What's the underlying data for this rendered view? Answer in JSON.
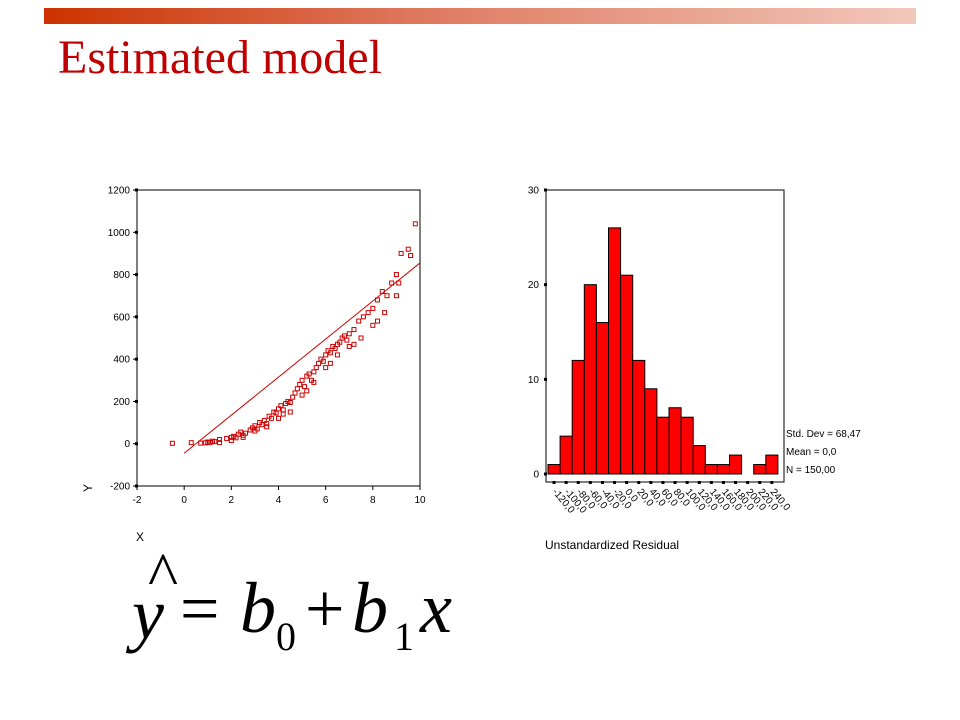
{
  "slide": {
    "title": "Estimated model",
    "accent_color": "#cc3300",
    "title_color": "#c00000"
  },
  "equation": {
    "lhs": "y",
    "hat": "^",
    "equals": "=",
    "b0_base": "b",
    "b0_sub": "0",
    "plus": "+",
    "b1_base": "b",
    "b1_sub": "1",
    "x": "x"
  },
  "chart_data": [
    {
      "type": "scatter",
      "title": "",
      "xlabel": "X",
      "ylabel": "Y",
      "xlim": [
        -2,
        10
      ],
      "ylim": [
        -200,
        1200
      ],
      "xticks": [
        "-2",
        "0",
        "2",
        "4",
        "6",
        "8",
        "10"
      ],
      "yticks": [
        "-200",
        "0",
        "200",
        "400",
        "600",
        "800",
        "1000",
        "1200"
      ],
      "marker_color": "#cc0000",
      "fit_line": {
        "intercept": -45,
        "slope": 90,
        "x_range": [
          0,
          10
        ],
        "color": "#cc0000"
      },
      "points": [
        [
          -0.5,
          2
        ],
        [
          0.3,
          5
        ],
        [
          0.7,
          3
        ],
        [
          0.9,
          4
        ],
        [
          1.0,
          8
        ],
        [
          1.1,
          6
        ],
        [
          1.2,
          12
        ],
        [
          1.3,
          10
        ],
        [
          1.5,
          20
        ],
        [
          1.8,
          25
        ],
        [
          2.0,
          30
        ],
        [
          2.1,
          35
        ],
        [
          2.2,
          28
        ],
        [
          2.3,
          45
        ],
        [
          2.4,
          55
        ],
        [
          2.5,
          40
        ],
        [
          2.6,
          50
        ],
        [
          2.8,
          65
        ],
        [
          2.9,
          75
        ],
        [
          3.0,
          85
        ],
        [
          3.1,
          70
        ],
        [
          3.2,
          100
        ],
        [
          3.3,
          90
        ],
        [
          3.4,
          110
        ],
        [
          3.5,
          95
        ],
        [
          3.6,
          130
        ],
        [
          3.7,
          120
        ],
        [
          3.8,
          150
        ],
        [
          3.9,
          145
        ],
        [
          4.0,
          165
        ],
        [
          4.1,
          180
        ],
        [
          4.2,
          160
        ],
        [
          4.3,
          190
        ],
        [
          4.4,
          200
        ],
        [
          4.5,
          195
        ],
        [
          4.6,
          220
        ],
        [
          4.7,
          240
        ],
        [
          4.8,
          260
        ],
        [
          4.9,
          280
        ],
        [
          5.0,
          300
        ],
        [
          5.1,
          270
        ],
        [
          5.2,
          320
        ],
        [
          5.3,
          330
        ],
        [
          5.4,
          300
        ],
        [
          5.5,
          340
        ],
        [
          5.6,
          360
        ],
        [
          5.7,
          380
        ],
        [
          5.8,
          400
        ],
        [
          5.9,
          390
        ],
        [
          6.0,
          420
        ],
        [
          6.1,
          440
        ],
        [
          6.2,
          430
        ],
        [
          6.3,
          460
        ],
        [
          6.4,
          450
        ],
        [
          6.5,
          470
        ],
        [
          6.6,
          480
        ],
        [
          6.7,
          500
        ],
        [
          6.8,
          510
        ],
        [
          6.9,
          490
        ],
        [
          7.0,
          520
        ],
        [
          7.2,
          540
        ],
        [
          7.4,
          580
        ],
        [
          7.6,
          600
        ],
        [
          7.8,
          620
        ],
        [
          8.0,
          640
        ],
        [
          8.2,
          680
        ],
        [
          8.4,
          720
        ],
        [
          8.6,
          700
        ],
        [
          8.8,
          760
        ],
        [
          9.0,
          800
        ],
        [
          9.2,
          900
        ],
        [
          9.5,
          920
        ],
        [
          9.8,
          1040
        ],
        [
          4.0,
          120
        ],
        [
          4.5,
          150
        ],
        [
          5.0,
          230
        ],
        [
          5.5,
          290
        ],
        [
          6.0,
          360
        ],
        [
          6.5,
          420
        ],
        [
          7.0,
          460
        ],
        [
          7.5,
          500
        ],
        [
          8.0,
          560
        ],
        [
          8.5,
          620
        ],
        [
          9.0,
          700
        ],
        [
          3.0,
          60
        ],
        [
          2.5,
          30
        ],
        [
          2.0,
          15
        ],
        [
          1.5,
          5
        ],
        [
          3.5,
          80
        ],
        [
          4.2,
          140
        ],
        [
          5.2,
          250
        ],
        [
          6.2,
          380
        ],
        [
          7.2,
          470
        ],
        [
          8.2,
          580
        ],
        [
          9.1,
          760
        ],
        [
          9.6,
          890
        ]
      ]
    },
    {
      "type": "bar",
      "title": "",
      "xlabel": "Unstandardized Residual",
      "ylabel": "",
      "ylim": [
        0,
        30
      ],
      "yticks": [
        "0",
        "10",
        "20",
        "30"
      ],
      "bar_color": "#ff0000",
      "values": [
        1,
        4,
        12,
        20,
        16,
        26,
        21,
        12,
        9,
        6,
        7,
        6,
        3,
        1,
        1,
        2,
        0,
        1,
        2
      ],
      "xtick_labels": [
        "-120,0",
        "-100,0",
        "-80,0",
        "-60,0",
        "-40,0",
        "-20,0",
        "0,0",
        "20,0",
        "40,0",
        "60,0",
        "80,0",
        "100,0",
        "120,0",
        "140,0",
        "160,0",
        "180,0",
        "200,0",
        "220,0",
        "240,0"
      ],
      "stats": [
        "Std. Dev = 68,47",
        "Mean = 0,0",
        "N = 150,00"
      ]
    }
  ]
}
